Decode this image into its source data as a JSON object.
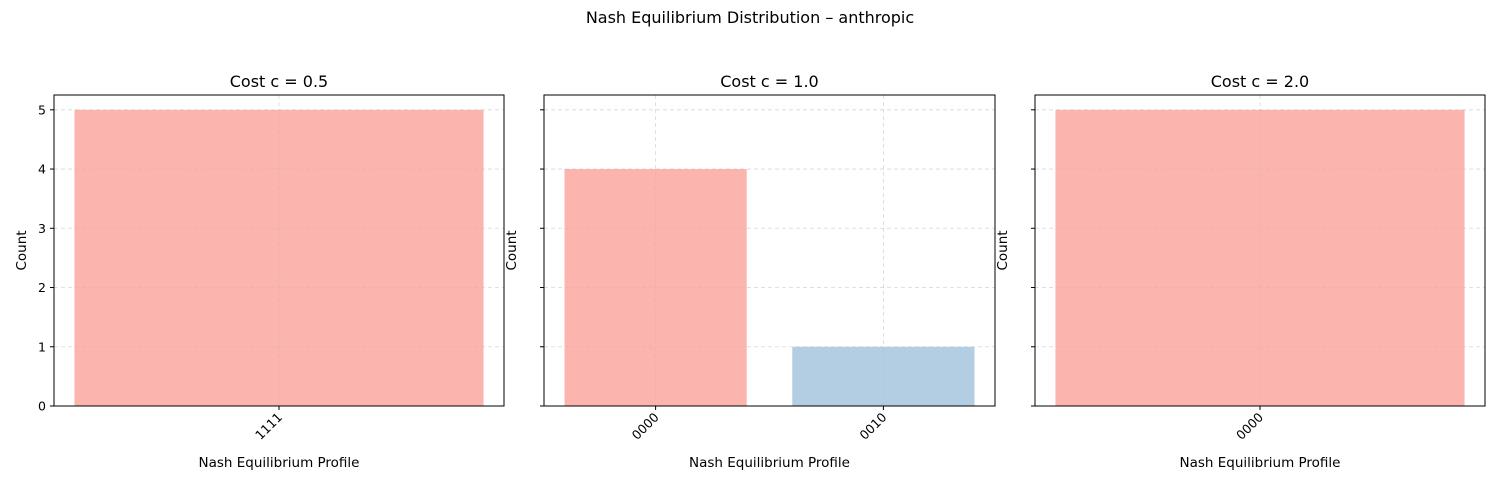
{
  "suptitle": "Nash Equilibrium Distribution – anthropic",
  "chart_data": [
    {
      "type": "bar",
      "title": "Cost c = 0.5",
      "xlabel": "Nash Equilibrium Profile",
      "ylabel": "Count",
      "categories": [
        "1111"
      ],
      "values": [
        5
      ],
      "colors": [
        "#fbb4ae"
      ],
      "ylim": [
        0,
        5.25
      ],
      "yticks": [
        0,
        1,
        2,
        3,
        4,
        5
      ],
      "grid": true
    },
    {
      "type": "bar",
      "title": "Cost c = 1.0",
      "xlabel": "Nash Equilibrium Profile",
      "ylabel": "Count",
      "categories": [
        "0000",
        "0010"
      ],
      "values": [
        4,
        1
      ],
      "colors": [
        "#fbb4ae",
        "#b3cde3"
      ],
      "ylim": [
        0,
        5.25
      ],
      "yticks": [
        0,
        1,
        2,
        3,
        4,
        5
      ],
      "grid": true
    },
    {
      "type": "bar",
      "title": "Cost c = 2.0",
      "xlabel": "Nash Equilibrium Profile",
      "ylabel": "Count",
      "categories": [
        "0000"
      ],
      "values": [
        5
      ],
      "colors": [
        "#fbb4ae"
      ],
      "ylim": [
        0,
        5.25
      ],
      "yticks": [
        0,
        1,
        2,
        3,
        4,
        5
      ],
      "grid": true
    }
  ]
}
